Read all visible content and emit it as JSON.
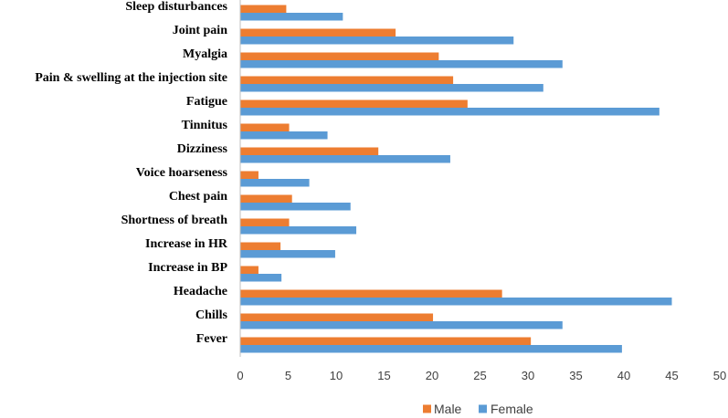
{
  "chart_data": {
    "type": "bar",
    "orientation": "horizontal",
    "title": "",
    "xlabel": "",
    "ylabel": "",
    "xlim": [
      0,
      50
    ],
    "x_ticks": [
      0,
      5,
      10,
      15,
      20,
      25,
      30,
      35,
      40,
      45,
      50
    ],
    "grid": false,
    "legend_position": "bottom",
    "categories": [
      "Sleep disturbances",
      "Joint pain",
      "Myalgia",
      "Pain & swelling at the injection site",
      "Fatigue",
      "Tinnitus",
      "Dizziness",
      "Voice hoarseness",
      "Chest pain",
      "Shortness of breath",
      "Increase in HR",
      "Increase in BP",
      "Headache",
      "Chills",
      "Fever"
    ],
    "series": [
      {
        "name": "Male",
        "color": "#ED7D31",
        "values": [
          4.8,
          16.2,
          20.7,
          22.2,
          23.7,
          5.1,
          14.4,
          1.9,
          5.4,
          5.1,
          4.2,
          1.9,
          27.3,
          20.1,
          30.3
        ]
      },
      {
        "name": "Female",
        "color": "#5B9BD5",
        "values": [
          10.7,
          28.5,
          33.6,
          31.6,
          43.7,
          9.1,
          21.9,
          7.2,
          11.5,
          12.1,
          9.9,
          4.3,
          45.0,
          33.6,
          39.8
        ]
      }
    ]
  }
}
